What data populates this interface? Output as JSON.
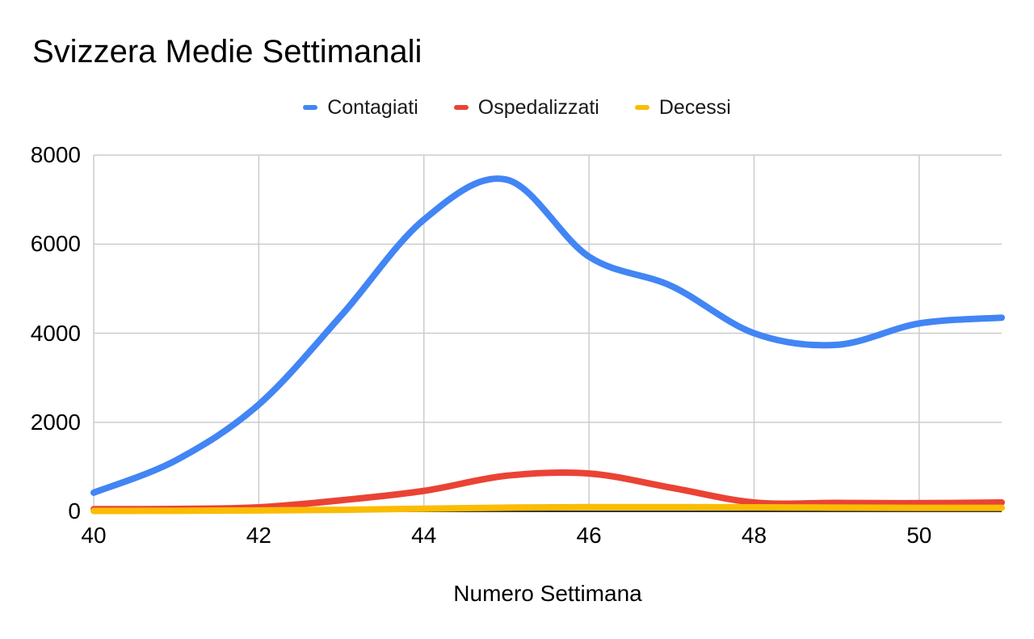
{
  "chart_data": {
    "type": "line",
    "smooth": true,
    "title": "Svizzera Medie Settimanali",
    "xlabel": "Numero Settimana",
    "ylabel": "",
    "x": [
      40,
      41,
      42,
      43,
      44,
      45,
      46,
      47,
      48,
      49,
      50,
      51
    ],
    "series": [
      {
        "name": "Contagiati",
        "color": "#4285F4",
        "values": [
          420,
          1150,
          2400,
          4400,
          6550,
          7450,
          5720,
          5060,
          4000,
          3740,
          4220,
          4350
        ]
      },
      {
        "name": "Ospedalizzati",
        "color": "#EA4335",
        "values": [
          50,
          55,
          90,
          250,
          460,
          800,
          850,
          530,
          200,
          190,
          185,
          200
        ]
      },
      {
        "name": "Decessi",
        "color": "#FBBC04",
        "values": [
          10,
          12,
          20,
          35,
          60,
          85,
          95,
          95,
          90,
          85,
          80,
          80
        ]
      }
    ],
    "xlim": [
      40,
      51
    ],
    "ylim": [
      0,
      8000
    ],
    "x_ticks": [
      40,
      42,
      44,
      46,
      48,
      50
    ],
    "y_ticks": [
      0,
      2000,
      4000,
      6000,
      8000
    ],
    "grid": true,
    "legend_position": "top",
    "colors": {
      "background": "#ffffff",
      "gridline": "#cccccc",
      "axis_baseline": "#333333",
      "text": "#000000"
    }
  }
}
